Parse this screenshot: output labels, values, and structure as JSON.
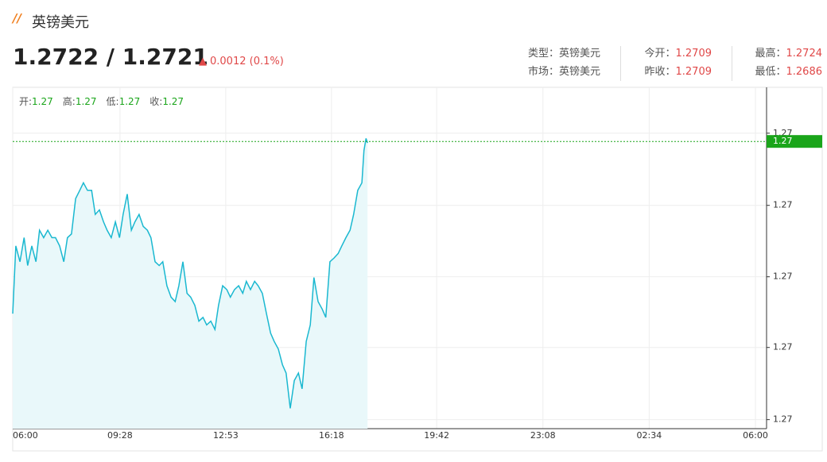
{
  "header": {
    "title": "英镑美元",
    "price": "1.2722 / 1.2721",
    "change": "0.0012 (0.1%)",
    "info": [
      [
        {
          "label": "类型：",
          "value": "英镑美元"
        },
        {
          "label": "今开：",
          "value": "1.2709"
        },
        {
          "label": "最高：",
          "value": "1.2724"
        }
      ],
      [
        {
          "label": "市场：",
          "value": "英镑美元"
        },
        {
          "label": "昨收：",
          "value": "1.2709"
        },
        {
          "label": "最低：",
          "value": "1.2686"
        }
      ]
    ]
  },
  "chart_data": {
    "type": "line",
    "ohlc": [
      {
        "label": "开:",
        "value": "1.27"
      },
      {
        "label": "高:",
        "value": "1.27"
      },
      {
        "label": "低:",
        "value": "1.27"
      },
      {
        "label": "收:",
        "value": "1.27"
      }
    ],
    "x": [
      0,
      6,
      14,
      22,
      29,
      37,
      45,
      52,
      60,
      68,
      76,
      83,
      91,
      99,
      106,
      114,
      122,
      130,
      137,
      145,
      153,
      160,
      168,
      176,
      183,
      191,
      199,
      207,
      214,
      222,
      230,
      237,
      245,
      253,
      261,
      268,
      276,
      284,
      291,
      299,
      307,
      315,
      322,
      330,
      338,
      345,
      353,
      361,
      369,
      376,
      384,
      392,
      399,
      407,
      415,
      422,
      430,
      438,
      446,
      453,
      461,
      469,
      476,
      484,
      492,
      500,
      507,
      515,
      523,
      530,
      538,
      546,
      554,
      561,
      569,
      577,
      584,
      592,
      600,
      607,
      615,
      623,
      631,
      638,
      646,
      654,
      661,
      669,
      677,
      681,
      685,
      688
    ],
    "series": [
      {
        "color": "#1ab8d0",
        "fill": "#e9f8fa",
        "values": [
          1.26991,
          1.27081,
          1.2706,
          1.27092,
          1.27055,
          1.27081,
          1.2706,
          1.27102,
          1.27092,
          1.27102,
          1.27092,
          1.27092,
          1.27081,
          1.2706,
          1.27092,
          1.27097,
          1.27144,
          1.27155,
          1.27165,
          1.27155,
          1.27155,
          1.27123,
          1.27129,
          1.27113,
          1.27102,
          1.27092,
          1.27113,
          1.27092,
          1.27123,
          1.2715,
          1.27102,
          1.27113,
          1.27123,
          1.27107,
          1.27102,
          1.27092,
          1.2706,
          1.27055,
          1.2706,
          1.27028,
          1.27013,
          1.27007,
          1.27028,
          1.2706,
          1.27018,
          1.27013,
          1.27002,
          1.26981,
          1.26986,
          1.26976,
          1.26981,
          1.2697,
          1.27002,
          1.27028,
          1.27023,
          1.27013,
          1.27023,
          1.27028,
          1.27018,
          1.27034,
          1.27023,
          1.27034,
          1.27028,
          1.27018,
          1.26991,
          1.26965,
          1.26954,
          1.26944,
          1.26923,
          1.26912,
          1.26865,
          1.26902,
          1.26912,
          1.26891,
          1.26954,
          1.26976,
          1.27039,
          1.27007,
          1.26997,
          1.26986,
          1.2706,
          1.27065,
          1.27071,
          1.27081,
          1.27092,
          1.27102,
          1.27123,
          1.27155,
          1.27165,
          1.27208,
          1.27224,
          1.27218
        ]
      }
    ],
    "last_price": {
      "value": 1.2722,
      "label": "1.27"
    },
    "last_color": "#1aa51a",
    "xlim": [
      0,
      1440
    ],
    "xticks": [
      {
        "value": 0,
        "label": "06:00"
      },
      {
        "value": 208,
        "label": "09:28"
      },
      {
        "value": 413,
        "label": "12:53"
      },
      {
        "value": 618,
        "label": "16:18"
      },
      {
        "value": 822,
        "label": "19:42"
      },
      {
        "value": 1028,
        "label": "23:08"
      },
      {
        "value": 1234,
        "label": "02:34"
      },
      {
        "value": 1440,
        "label": "06:00"
      }
    ],
    "ylim": [
      1.26838,
      1.27292
    ],
    "yticks": [
      {
        "value": 1.2685,
        "label": "1.27"
      },
      {
        "value": 1.26946,
        "label": "1.27"
      },
      {
        "value": 1.2704,
        "label": "1.27"
      },
      {
        "value": 1.27135,
        "label": "1.27"
      },
      {
        "value": 1.27231,
        "label": "1.27"
      }
    ],
    "grid": true
  }
}
